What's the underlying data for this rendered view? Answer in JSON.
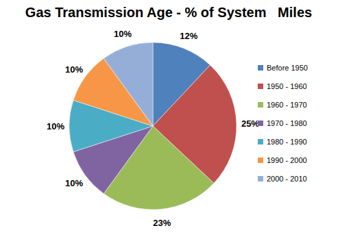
{
  "chart_data": {
    "type": "pie",
    "title": "Gas Transmission Age - % of System   Miles",
    "categories": [
      "Before 1950",
      "1950 - 1960",
      "1960 - 1970",
      "1970 - 1980",
      "1980 - 1990",
      "1990 - 2000",
      "2000 - 2010"
    ],
    "values": [
      12,
      25,
      23,
      10,
      10,
      10,
      10
    ],
    "value_labels": [
      "12%",
      "25%",
      "23%",
      "10%",
      "10%",
      "10%",
      "10%"
    ],
    "colors": [
      "#4f81bd",
      "#c0504d",
      "#9bbb59",
      "#8064a2",
      "#4bacc6",
      "#f79646",
      "#95aed8"
    ],
    "data_labels": true,
    "legend": "right"
  }
}
